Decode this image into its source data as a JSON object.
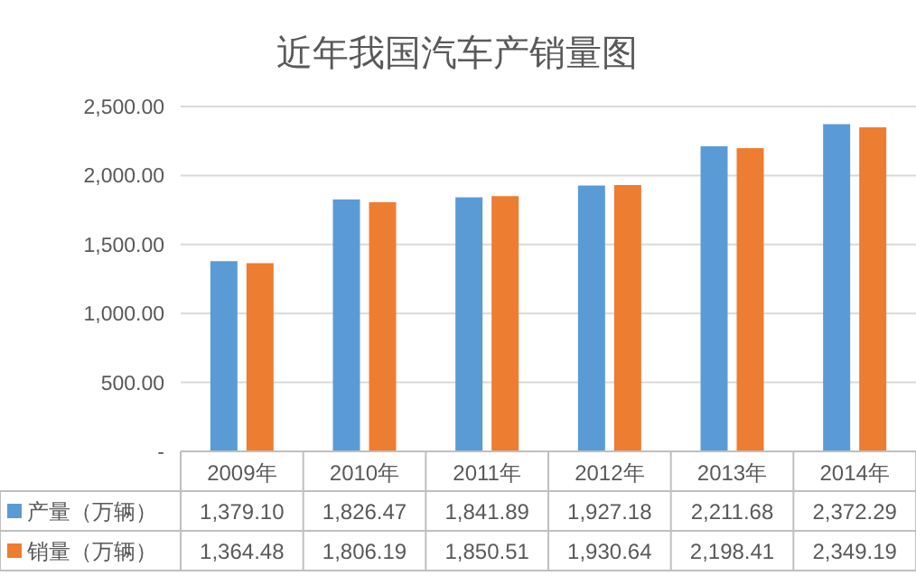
{
  "chart_data": {
    "type": "bar",
    "title": "近年我国汽车产销量图",
    "categories": [
      "2009年",
      "2010年",
      "2011年",
      "2012年",
      "2013年",
      "2014年"
    ],
    "series": [
      {
        "name": "产量（万辆）",
        "color": "#5b9bd5",
        "values": [
          1379.1,
          1826.47,
          1841.89,
          1927.18,
          2211.68,
          2372.29
        ],
        "value_labels": [
          "1,379.10",
          "1,826.47",
          "1,841.89",
          "1,927.18",
          "2,211.68",
          "2,372.29"
        ]
      },
      {
        "name": "销量（万辆）",
        "color": "#ed7d31",
        "values": [
          1364.48,
          1806.19,
          1850.51,
          1930.64,
          2198.41,
          2349.19
        ],
        "value_labels": [
          "1,364.48",
          "1,806.19",
          "1,850.51",
          "1,930.64",
          "2,198.41",
          "2,349.19"
        ]
      }
    ],
    "ylim": [
      0,
      2500
    ],
    "yticks": [
      {
        "value": 0,
        "label": "-"
      },
      {
        "value": 500,
        "label": "500.00"
      },
      {
        "value": 1000,
        "label": "1,000.00"
      },
      {
        "value": 1500,
        "label": "1,500.00"
      },
      {
        "value": 2000,
        "label": "2,000.00"
      },
      {
        "value": 2500,
        "label": "2,500.00"
      }
    ],
    "grid": "y",
    "legend": "bottom"
  }
}
